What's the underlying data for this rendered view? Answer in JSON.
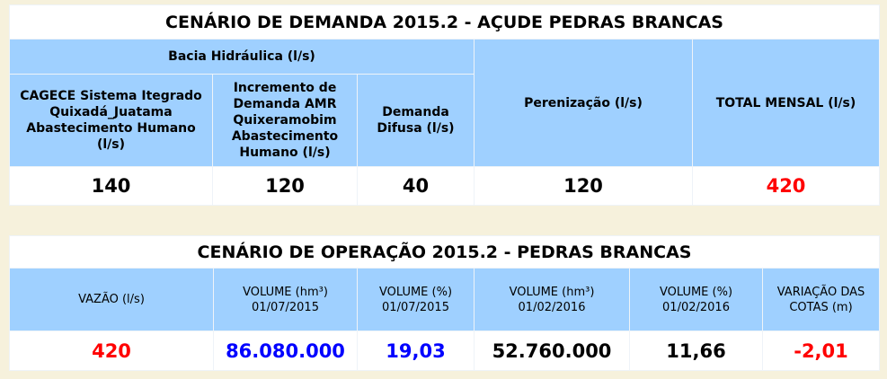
{
  "demand_table": {
    "title": "CENÁRIO DE DEMANDA 2015.2 - AÇUDE PEDRAS BRANCAS",
    "group_header": "Bacia Hidráulica (l/s)",
    "sub_headers": [
      [
        "CAGECE Sistema Itegrado",
        "Quixadá_Juatama",
        "Abastecimento Humano",
        "(l/s)"
      ],
      [
        "Incremento de",
        "Demanda AMR",
        "Quixeramobim",
        "Abastecimento",
        "Humano (l/s)"
      ],
      [
        "Demanda",
        "Difusa (l/s)"
      ]
    ],
    "headers": [
      "Perenização (l/s)",
      "TOTAL MENSAL (l/s)"
    ],
    "values": [
      {
        "text": "140",
        "color": "#000000"
      },
      {
        "text": "120",
        "color": "#000000"
      },
      {
        "text": "40",
        "color": "#000000"
      },
      {
        "text": "120",
        "color": "#000000"
      },
      {
        "text": "420",
        "color": "#ff0000"
      }
    ]
  },
  "operation_table": {
    "title": "CENÁRIO DE OPERAÇÃO 2015.2 - PEDRAS BRANCAS",
    "headers": [
      [
        "VAZÃO (l/s)"
      ],
      [
        "VOLUME (hm³)",
        "01/07/2015"
      ],
      [
        "VOLUME (%)",
        "01/07/2015"
      ],
      [
        "VOLUME (hm³)",
        "01/02/2016"
      ],
      [
        "VOLUME (%)",
        "01/02/2016"
      ],
      [
        "VARIAÇÃO DAS",
        "COTAS (m)"
      ]
    ],
    "values": [
      {
        "text": "420",
        "color": "#ff0000"
      },
      {
        "text": "86.080.000",
        "color": "#0000ff"
      },
      {
        "text": "19,03",
        "color": "#0000ff"
      },
      {
        "text": "52.760.000",
        "color": "#000000"
      },
      {
        "text": "11,66",
        "color": "#000000"
      },
      {
        "text": "-2,01",
        "color": "#ff0000"
      }
    ]
  }
}
